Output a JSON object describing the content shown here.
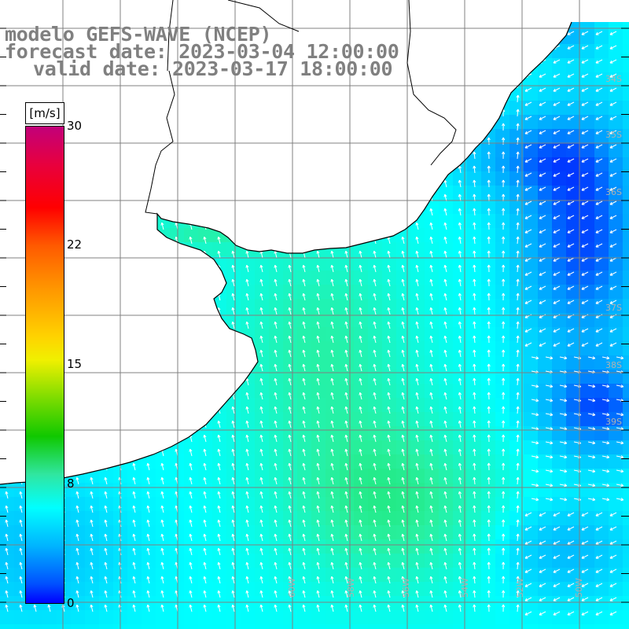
{
  "title": {
    "line1": "modelo GEFS-WAVE (NCEP)",
    "line2": "forecast date: 2023-03-04 12:00:00",
    "line3": "valid date: 2023-03-17 18:00:00"
  },
  "legend": {
    "unit": "[m/s]",
    "ticks": [
      "30",
      "22",
      "15",
      "8",
      "0"
    ],
    "range": [
      0,
      30
    ]
  },
  "graticule": {
    "lat_labels": [
      "34S",
      "35S",
      "36S",
      "37S",
      "38S",
      "39S"
    ],
    "lon_labels": [
      "60W",
      "58W",
      "56W",
      "54W",
      "52W",
      "50W"
    ]
  },
  "colors": {
    "land": "#ffffff",
    "coast": "#000000",
    "grid": "#808080",
    "arrows": "#ffffff"
  }
}
